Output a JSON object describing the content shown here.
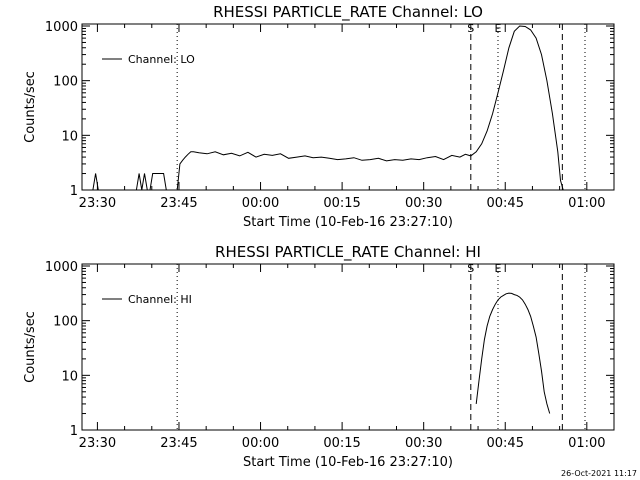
{
  "chart_data": [
    {
      "type": "line",
      "title": "RHESSI PARTICLE_RATE Channel: LO",
      "xlabel": "Start Time (10-Feb-16 23:27:10)",
      "ylabel": "Counts/sec",
      "y_scale": "log",
      "ylim": [
        1,
        1000
      ],
      "xlim": [
        "23:27:10",
        "01:05:00"
      ],
      "x_ticks": [
        "23:30",
        "23:45",
        "00:00",
        "00:15",
        "00:30",
        "00:45",
        "01:00"
      ],
      "y_ticks": [
        "1",
        "10",
        "100",
        "1000"
      ],
      "grid": false,
      "legend_position": "top-left",
      "series": [
        {
          "name": "Channel: LO",
          "x": [
            "23:27:10",
            "23:27:40",
            "23:28:10",
            "23:28:40",
            "23:29:10",
            "23:29:40",
            "23:30:10",
            "23:30:40",
            "23:31:10",
            "23:31:40",
            "23:32:10",
            "23:32:40",
            "23:33:10",
            "23:33:40",
            "23:34:10",
            "23:34:40",
            "23:35:10",
            "23:35:40",
            "23:36:10",
            "23:36:40",
            "23:37:10",
            "23:37:40",
            "23:38:10",
            "23:38:40",
            "23:39:10",
            "23:39:40",
            "23:40:10",
            "23:40:40",
            "23:41:10",
            "23:41:40",
            "23:42:10",
            "23:42:40",
            "23:43:10",
            "23:43:40",
            "23:44:10",
            "23:44:40",
            "23:45:10",
            "23:45:40",
            "23:46:10",
            "23:46:40",
            "23:47:10",
            "23:47:40",
            "23:48:40",
            "23:50:10",
            "23:51:40",
            "23:53:10",
            "23:54:40",
            "23:56:10",
            "23:57:40",
            "23:59:10",
            "00:00:40",
            "00:02:10",
            "00:03:40",
            "00:05:10",
            "00:06:40",
            "00:08:10",
            "00:09:40",
            "00:11:10",
            "00:12:40",
            "00:14:10",
            "00:15:40",
            "00:17:10",
            "00:18:40",
            "00:20:10",
            "00:21:40",
            "00:23:10",
            "00:24:40",
            "00:26:10",
            "00:27:40",
            "00:29:10",
            "00:30:40",
            "00:32:10",
            "00:33:40",
            "00:35:10",
            "00:36:40",
            "00:37:40",
            "00:38:40",
            "00:39:40",
            "00:40:40",
            "00:41:40",
            "00:42:40",
            "00:43:40",
            "00:44:40",
            "00:45:40",
            "00:46:40",
            "00:47:40",
            "00:48:40",
            "00:49:40",
            "00:50:40",
            "00:51:40",
            "00:52:40",
            "00:53:40",
            "00:54:40",
            "00:55:10",
            "00:55:40"
          ],
          "values": [
            1,
            1,
            1,
            1,
            1,
            2,
            1,
            1,
            1,
            1,
            1,
            1,
            1,
            1,
            1,
            1,
            1,
            1,
            1,
            1,
            1,
            2,
            1,
            2,
            1,
            1,
            2,
            2,
            2,
            2,
            2,
            1,
            1,
            1,
            1,
            1,
            3,
            3.5,
            4,
            4.5,
            5,
            5,
            4.8,
            4.6,
            5,
            4.4,
            4.7,
            4.2,
            4.9,
            4,
            4.5,
            4.3,
            4.6,
            3.8,
            4,
            4.2,
            3.9,
            4,
            3.8,
            3.6,
            3.7,
            3.9,
            3.5,
            3.6,
            3.8,
            3.4,
            3.6,
            3.5,
            3.7,
            3.6,
            3.9,
            4.1,
            3.6,
            4.3,
            4,
            4.5,
            4.2,
            5,
            7,
            12,
            25,
            60,
            150,
            400,
            800,
            1000,
            980,
            850,
            600,
            300,
            100,
            25,
            5,
            1.5,
            1
          ]
        }
      ],
      "annotations": [
        {
          "label": "S",
          "x": "00:38:40",
          "style": "dashed"
        },
        {
          "label": "E",
          "x": "00:43:40",
          "style": "dotted"
        },
        {
          "label": "",
          "x": "23:44:40",
          "style": "dotted"
        },
        {
          "label": "",
          "x": "00:55:30",
          "style": "dashed"
        },
        {
          "label": "",
          "x": "00:59:40",
          "style": "dotted"
        }
      ]
    },
    {
      "type": "line",
      "title": "RHESSI PARTICLE_RATE Channel: HI",
      "xlabel": "Start Time (10-Feb-16 23:27:10)",
      "ylabel": "Counts/sec",
      "y_scale": "log",
      "ylim": [
        1,
        1000
      ],
      "xlim": [
        "23:27:10",
        "01:05:00"
      ],
      "x_ticks": [
        "23:30",
        "23:45",
        "00:00",
        "00:15",
        "00:30",
        "00:45",
        "01:00"
      ],
      "y_ticks": [
        "1",
        "10",
        "100",
        "1000"
      ],
      "grid": false,
      "legend_position": "top-left",
      "series": [
        {
          "name": "Channel: HI",
          "x": [
            "00:39:40",
            "00:40:10",
            "00:40:40",
            "00:41:10",
            "00:41:40",
            "00:42:10",
            "00:42:40",
            "00:43:10",
            "00:43:40",
            "00:44:10",
            "00:44:40",
            "00:45:10",
            "00:45:40",
            "00:46:10",
            "00:46:40",
            "00:47:10",
            "00:47:40",
            "00:48:10",
            "00:48:40",
            "00:49:10",
            "00:49:40",
            "00:50:10",
            "00:50:40",
            "00:51:10",
            "00:51:40",
            "00:52:10",
            "00:52:40",
            "00:53:10"
          ],
          "values": [
            3,
            8,
            20,
            45,
            80,
            120,
            160,
            200,
            240,
            270,
            290,
            310,
            320,
            315,
            300,
            290,
            270,
            240,
            200,
            160,
            120,
            80,
            50,
            25,
            12,
            5,
            3,
            2
          ]
        }
      ],
      "annotations": [
        {
          "label": "S",
          "x": "00:38:40",
          "style": "dashed"
        },
        {
          "label": "E",
          "x": "00:43:40",
          "style": "dotted"
        },
        {
          "label": "",
          "x": "23:44:40",
          "style": "dotted"
        },
        {
          "label": "",
          "x": "00:55:30",
          "style": "dashed"
        },
        {
          "label": "",
          "x": "00:59:40",
          "style": "dotted"
        }
      ]
    }
  ],
  "footer": {
    "timestamp": "26-Oct-2021 11:17"
  }
}
